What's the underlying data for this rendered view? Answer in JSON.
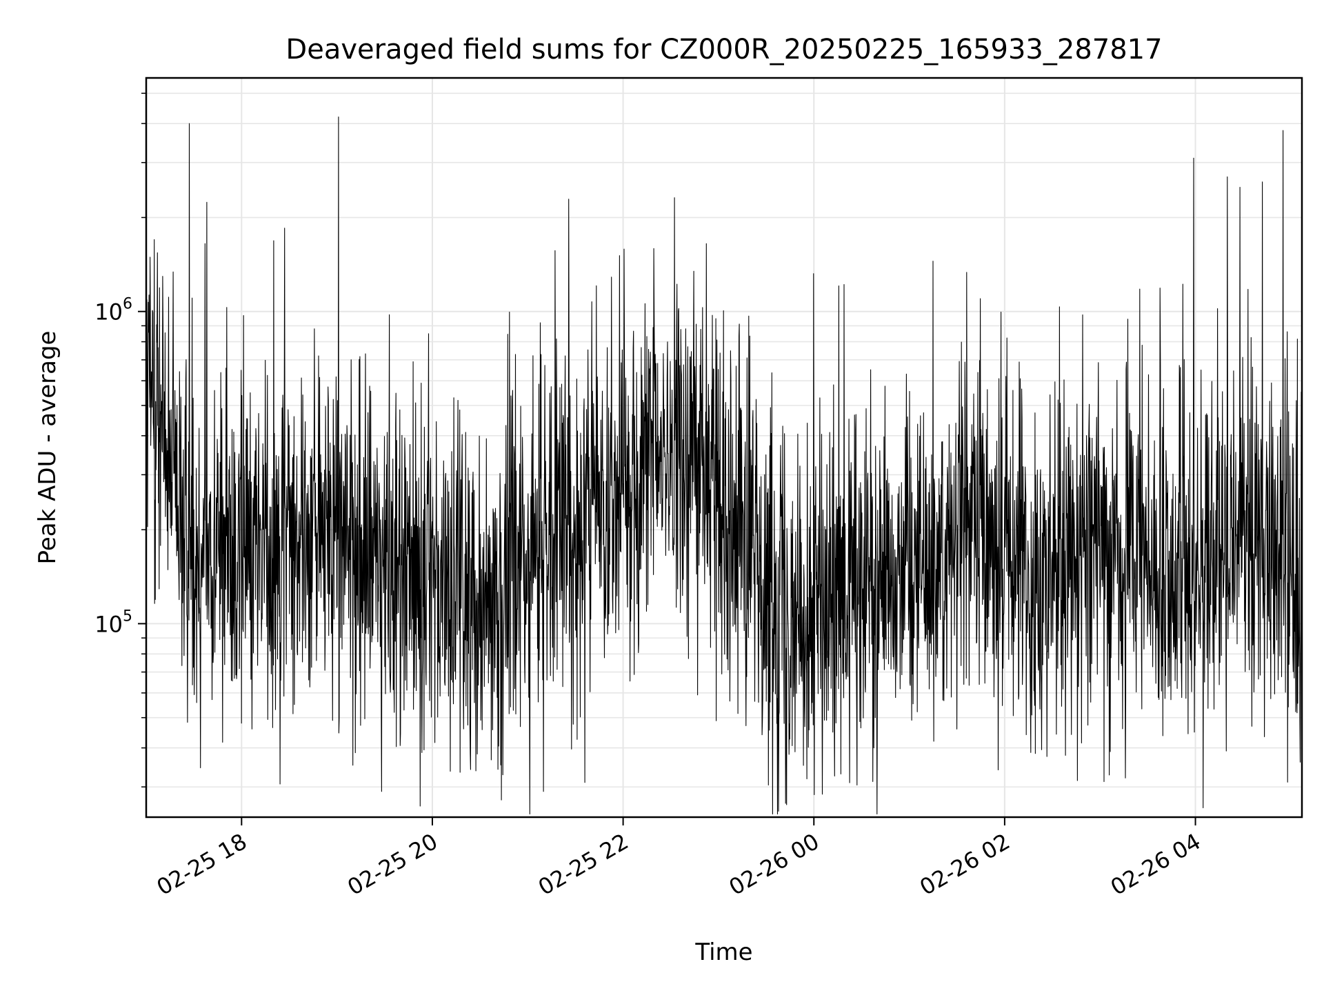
{
  "chart_data": {
    "type": "line",
    "title": "Deaveraged field sums for CZ000R_20250225_165933_287817",
    "xlabel": "Time",
    "ylabel": "Peak ADU - average",
    "yscale": "log",
    "ylim": [
      24000,
      5600000
    ],
    "xlim": [
      "2025-02-25 17:00",
      "2025-02-26 05:07"
    ],
    "grid": true,
    "line_color": "#000000",
    "x_ticks": [
      {
        "value": "2025-02-25 18:00",
        "label": "02-25 18"
      },
      {
        "value": "2025-02-25 20:00",
        "label": "02-25 20"
      },
      {
        "value": "2025-02-25 22:00",
        "label": "02-25 22"
      },
      {
        "value": "2025-02-26 00:00",
        "label": "02-26 00"
      },
      {
        "value": "2025-02-26 02:00",
        "label": "02-26 02"
      },
      {
        "value": "2025-02-26 04:00",
        "label": "02-26 04"
      }
    ],
    "y_ticks": [
      {
        "value": 100000,
        "base": "10",
        "exp": "5"
      },
      {
        "value": 1000000,
        "base": "10",
        "exp": "6"
      }
    ],
    "series": [
      {
        "x": [
          "2025-02-25 17:00",
          "2025-02-25 17:03",
          "2025-02-25 17:06",
          "2025-02-25 17:10",
          "2025-02-25 17:15",
          "2025-02-25 17:20",
          "2025-02-25 17:30",
          "2025-02-25 17:45",
          "2025-02-25 18:00",
          "2025-02-25 18:15",
          "2025-02-25 18:30",
          "2025-02-25 18:45",
          "2025-02-25 19:00",
          "2025-02-25 19:15",
          "2025-02-25 19:30",
          "2025-02-25 19:45",
          "2025-02-25 20:00",
          "2025-02-25 20:15",
          "2025-02-25 20:30",
          "2025-02-25 20:45",
          "2025-02-25 21:00",
          "2025-02-25 21:15",
          "2025-02-25 21:30",
          "2025-02-25 21:45",
          "2025-02-25 22:00",
          "2025-02-25 22:15",
          "2025-02-25 22:30",
          "2025-02-25 22:45",
          "2025-02-25 23:00",
          "2025-02-25 23:15",
          "2025-02-25 23:30",
          "2025-02-25 23:45",
          "2025-02-26 00:00",
          "2025-02-26 00:15",
          "2025-02-26 00:30",
          "2025-02-26 00:45",
          "2025-02-26 01:00",
          "2025-02-26 01:15",
          "2025-02-26 01:30",
          "2025-02-26 01:45",
          "2025-02-26 02:00",
          "2025-02-26 02:15",
          "2025-02-26 02:30",
          "2025-02-26 02:45",
          "2025-02-26 03:00",
          "2025-02-26 03:15",
          "2025-02-26 03:30",
          "2025-02-26 03:45",
          "2025-02-26 04:00",
          "2025-02-26 04:15",
          "2025-02-26 04:30",
          "2025-02-26 04:45",
          "2025-02-26 05:00",
          "2025-02-26 05:07"
        ],
        "y": [
          480000,
          560000,
          500000,
          420000,
          300000,
          200000,
          190000,
          185000,
          180000,
          185000,
          200000,
          210000,
          190000,
          170000,
          160000,
          150000,
          140000,
          130000,
          125000,
          140000,
          160000,
          190000,
          210000,
          230000,
          260000,
          330000,
          350000,
          340000,
          300000,
          200000,
          140000,
          120000,
          110000,
          105000,
          120000,
          150000,
          170000,
          150000,
          190000,
          210000,
          170000,
          150000,
          140000,
          190000,
          200000,
          165000,
          140000,
          145000,
          160000,
          180000,
          190000,
          170000,
          150000,
          80000
        ],
        "noise_sigma": 0.28,
        "spikes": [
          {
            "x": "2025-02-25 17:05",
            "y": 1700000
          },
          {
            "x": "2025-02-25 17:27",
            "y": 4000000
          },
          {
            "x": "2025-02-25 17:37",
            "y": 1650000
          },
          {
            "x": "2025-02-25 18:00",
            "y": 1150000
          },
          {
            "x": "2025-02-25 18:27",
            "y": 1850000
          },
          {
            "x": "2025-02-25 19:01",
            "y": 4200000
          },
          {
            "x": "2025-02-25 21:08",
            "y": 920000
          },
          {
            "x": "2025-02-25 22:50",
            "y": 1030000
          },
          {
            "x": "2025-02-26 00:19",
            "y": 1220000
          },
          {
            "x": "2025-02-26 01:15",
            "y": 1450000
          },
          {
            "x": "2025-02-26 03:25",
            "y": 1180000
          },
          {
            "x": "2025-02-26 03:59",
            "y": 3100000
          },
          {
            "x": "2025-02-26 04:20",
            "y": 2700000
          },
          {
            "x": "2025-02-26 04:28",
            "y": 2500000
          },
          {
            "x": "2025-02-26 04:42",
            "y": 2600000
          },
          {
            "x": "2025-02-26 04:55",
            "y": 3800000
          }
        ],
        "dips": [
          {
            "x": "2025-02-25 18:00",
            "y": 48000
          },
          {
            "x": "2025-02-25 19:28",
            "y": 29000
          },
          {
            "x": "2025-02-25 21:10",
            "y": 29000
          },
          {
            "x": "2025-02-25 21:36",
            "y": 31000
          },
          {
            "x": "2025-02-26 00:17",
            "y": 33000
          },
          {
            "x": "2025-02-26 01:56",
            "y": 34000
          },
          {
            "x": "2025-02-26 05:06",
            "y": 36000
          }
        ]
      }
    ]
  }
}
